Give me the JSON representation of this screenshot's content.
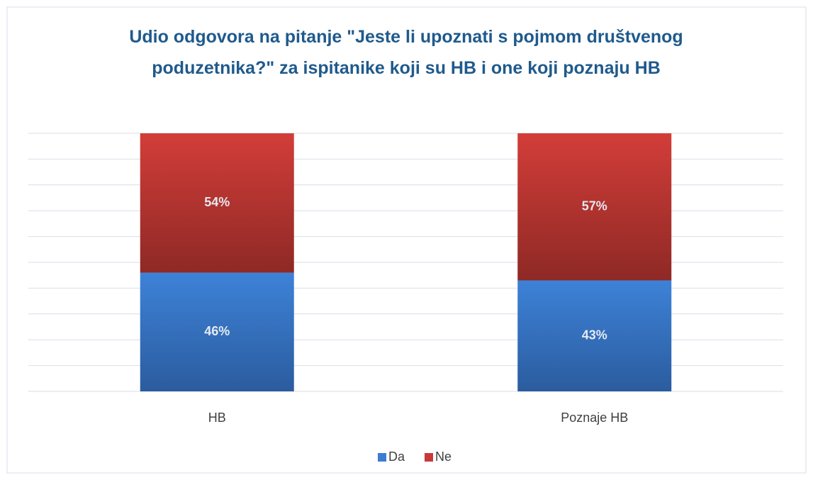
{
  "chart_data": {
    "type": "stacked_bar",
    "title": "Udio odgovora na pitanje \"Jeste li upoznati s pojmom društvenog poduzetnika?\" za ispitanike koji su HB i one koji poznaju HB",
    "categories": [
      "HB",
      "Poznaje HB"
    ],
    "series": [
      {
        "name": "Da",
        "color": "#3b7dd0",
        "values": [
          46,
          43
        ],
        "value_labels": [
          "46%",
          "43%"
        ]
      },
      {
        "name": "Ne",
        "color": "#c9393a",
        "values": [
          54,
          57
        ],
        "value_labels": [
          "54%",
          "57%"
        ]
      }
    ],
    "ylim": [
      0,
      100
    ],
    "yticks": [
      0,
      10,
      20,
      30,
      40,
      50,
      60,
      70,
      80,
      90,
      100
    ],
    "grid": true,
    "legend": "bottom"
  }
}
